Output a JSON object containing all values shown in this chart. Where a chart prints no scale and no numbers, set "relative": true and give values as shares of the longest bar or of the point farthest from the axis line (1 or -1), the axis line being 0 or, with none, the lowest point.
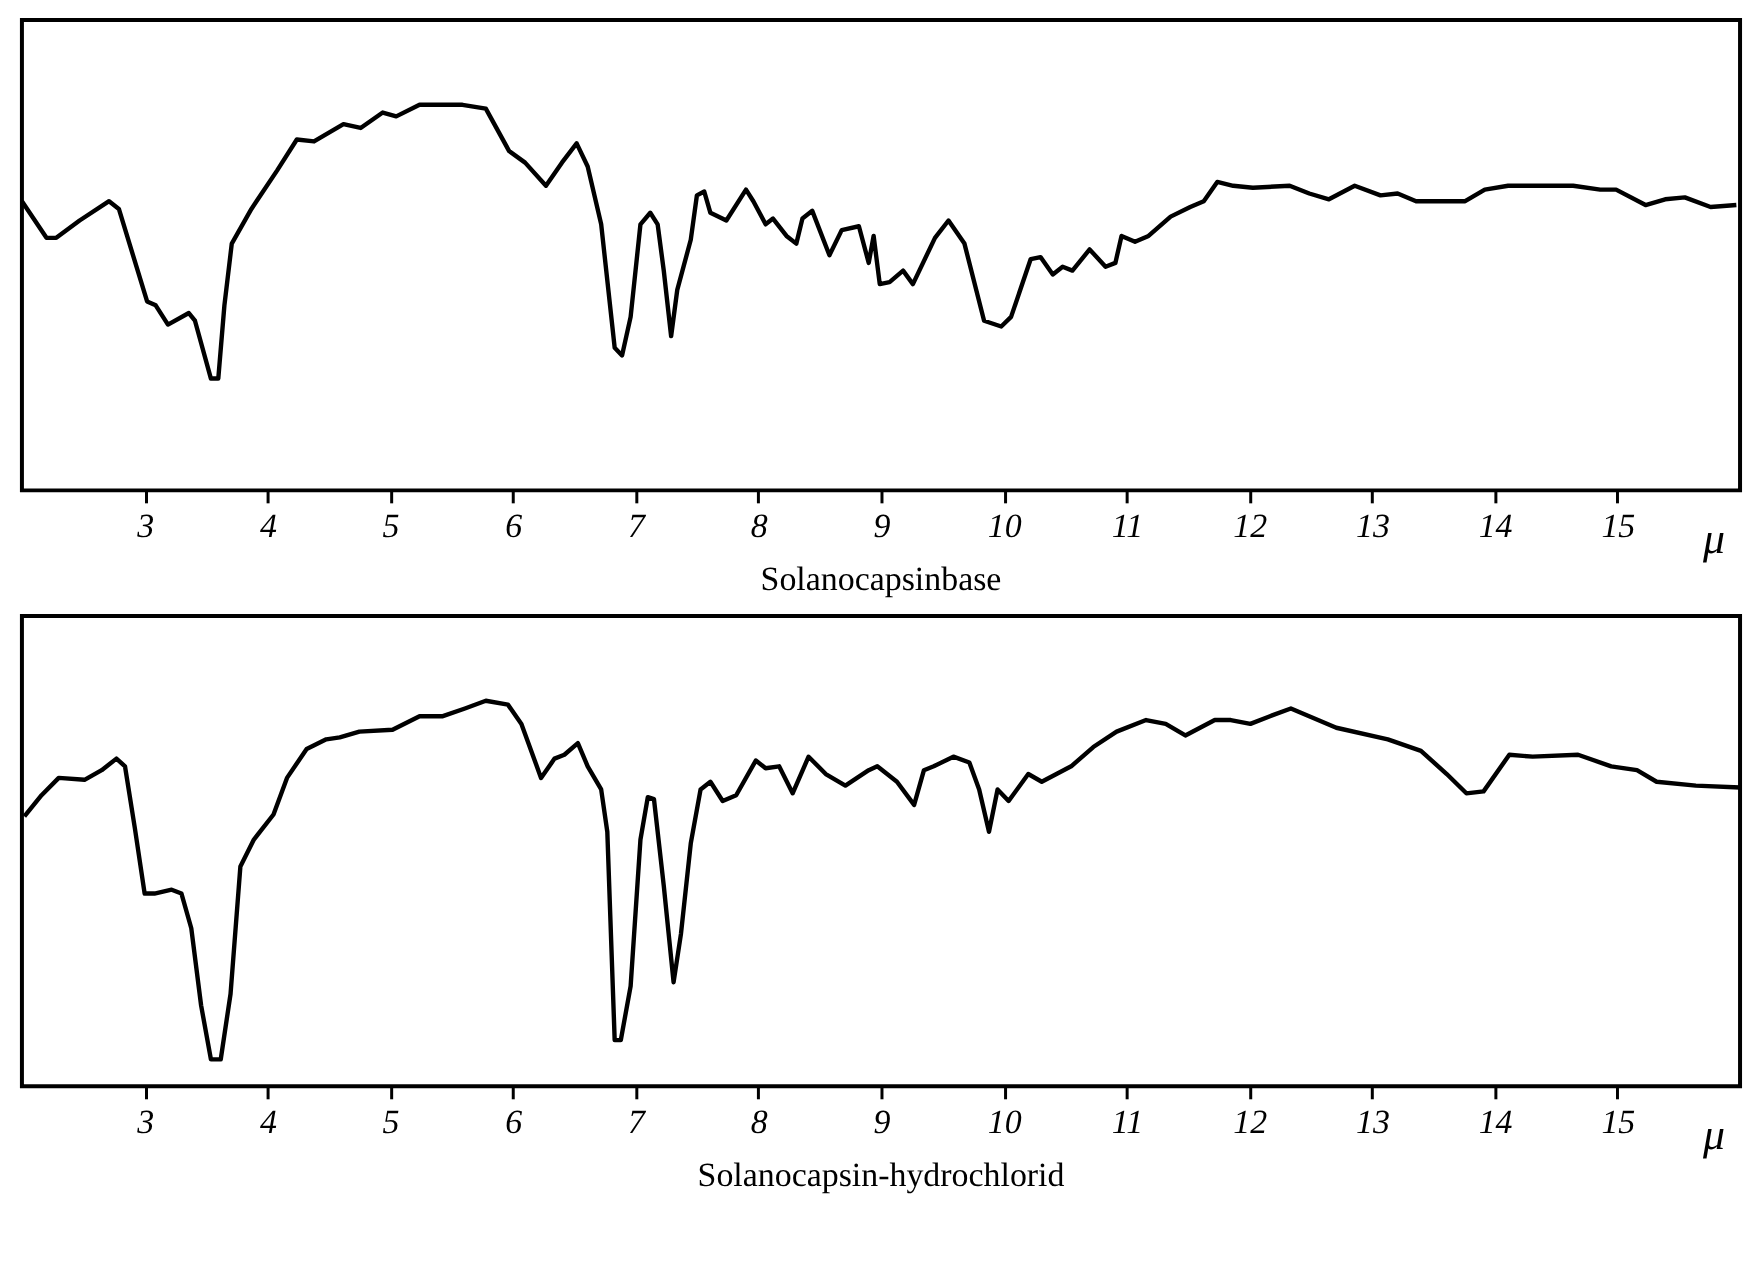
{
  "chart_data": [
    {
      "type": "line",
      "relative": true,
      "title": "Solanocapsinbase",
      "xlabel": "μ",
      "xlim": [
        2,
        16
      ],
      "xticks": [
        3,
        4,
        5,
        6,
        7,
        8,
        9,
        10,
        11,
        12,
        13,
        14,
        15
      ],
      "tick_labels": "x",
      "grid": false,
      "marker": "none",
      "line_style": "solid",
      "x": [
        2.0,
        2.2,
        2.28,
        2.47,
        2.71,
        2.79,
        3.02,
        3.09,
        3.19,
        3.36,
        3.41,
        3.54,
        3.6,
        3.65,
        3.71,
        3.87,
        4.08,
        4.24,
        4.38,
        4.62,
        4.76,
        4.94,
        5.05,
        5.24,
        5.59,
        5.78,
        5.97,
        6.1,
        6.27,
        6.4,
        6.52,
        6.61,
        6.72,
        6.83,
        6.89,
        6.96,
        7.04,
        7.12,
        7.18,
        7.23,
        7.29,
        7.34,
        7.45,
        7.5,
        7.56,
        7.61,
        7.74,
        7.9,
        7.96,
        8.06,
        8.12,
        8.23,
        8.31,
        8.36,
        8.44,
        8.58,
        8.68,
        8.82,
        8.9,
        8.94,
        8.99,
        9.07,
        9.18,
        9.26,
        9.44,
        9.55,
        9.68,
        9.84,
        9.98,
        10.06,
        10.22,
        10.3,
        10.4,
        10.48,
        10.56,
        10.7,
        10.83,
        10.91,
        10.96,
        11.07,
        11.18,
        11.36,
        11.52,
        11.63,
        11.74,
        11.87,
        12.03,
        12.33,
        12.49,
        12.65,
        12.86,
        13.07,
        13.21,
        13.36,
        13.76,
        13.92,
        14.11,
        14.38,
        14.64,
        14.86,
        14.99,
        15.23,
        15.39,
        15.55,
        15.76,
        15.97
      ],
      "series": [
        {
          "color": "#000000",
          "values": [
            0.75,
            0.655,
            0.655,
            0.7,
            0.75,
            0.73,
            0.49,
            0.48,
            0.43,
            0.46,
            0.44,
            0.29,
            0.29,
            0.48,
            0.64,
            0.73,
            0.83,
            0.91,
            0.905,
            0.95,
            0.94,
            0.98,
            0.97,
            1.0,
            1.0,
            0.99,
            0.88,
            0.85,
            0.79,
            0.85,
            0.9,
            0.84,
            0.69,
            0.37,
            0.35,
            0.45,
            0.69,
            0.72,
            0.69,
            0.57,
            0.4,
            0.52,
            0.65,
            0.765,
            0.775,
            0.72,
            0.7,
            0.78,
            0.75,
            0.69,
            0.705,
            0.66,
            0.64,
            0.705,
            0.725,
            0.61,
            0.675,
            0.685,
            0.59,
            0.66,
            0.535,
            0.54,
            0.57,
            0.535,
            0.655,
            0.7,
            0.64,
            0.44,
            0.425,
            0.45,
            0.6,
            0.605,
            0.56,
            0.58,
            0.57,
            0.625,
            0.58,
            0.59,
            0.66,
            0.645,
            0.66,
            0.71,
            0.735,
            0.75,
            0.8,
            0.79,
            0.785,
            0.79,
            0.77,
            0.755,
            0.79,
            0.765,
            0.77,
            0.75,
            0.75,
            0.78,
            0.79,
            0.79,
            0.79,
            0.78,
            0.78,
            0.74,
            0.755,
            0.76,
            0.735,
            0.74
          ]
        }
      ]
    },
    {
      "type": "line",
      "relative": true,
      "title": "Solanocapsin-hydrochlorid",
      "xlabel": "μ",
      "xlim": [
        2,
        16
      ],
      "xticks": [
        3,
        4,
        5,
        6,
        7,
        8,
        9,
        10,
        11,
        12,
        13,
        14,
        15
      ],
      "tick_labels": "x",
      "grid": false,
      "marker": "none",
      "line_style": "solid",
      "x": [
        2.02,
        2.16,
        2.3,
        2.51,
        2.65,
        2.77,
        2.84,
        2.92,
        3.0,
        3.08,
        3.22,
        3.3,
        3.38,
        3.46,
        3.54,
        3.62,
        3.7,
        3.78,
        3.89,
        4.05,
        4.16,
        4.32,
        4.48,
        4.59,
        4.75,
        5.02,
        5.24,
        5.43,
        5.61,
        5.78,
        5.96,
        6.07,
        6.23,
        6.34,
        6.42,
        6.53,
        6.61,
        6.72,
        6.77,
        6.83,
        6.88,
        6.96,
        7.04,
        7.1,
        7.15,
        7.23,
        7.31,
        7.37,
        7.45,
        7.53,
        7.61,
        7.71,
        7.82,
        7.98,
        8.06,
        8.17,
        8.28,
        8.41,
        8.55,
        8.71,
        8.9,
        8.97,
        9.13,
        9.27,
        9.35,
        9.43,
        9.59,
        9.72,
        9.8,
        9.88,
        9.95,
        10.04,
        10.2,
        10.31,
        10.55,
        10.73,
        10.92,
        11.16,
        11.32,
        11.48,
        11.72,
        11.85,
        12.01,
        12.17,
        12.34,
        12.71,
        13.13,
        13.4,
        13.61,
        13.77,
        13.91,
        14.12,
        14.31,
        14.68,
        14.95,
        15.16,
        15.32,
        15.64,
        16.0
      ],
      "series": [
        {
          "color": "#000000",
          "values": [
            0.7,
            0.755,
            0.8,
            0.795,
            0.82,
            0.85,
            0.83,
            0.67,
            0.5,
            0.5,
            0.51,
            0.5,
            0.41,
            0.21,
            0.07,
            0.07,
            0.24,
            0.57,
            0.64,
            0.705,
            0.8,
            0.875,
            0.9,
            0.905,
            0.92,
            0.925,
            0.96,
            0.96,
            0.98,
            1.0,
            0.99,
            0.94,
            0.8,
            0.85,
            0.86,
            0.89,
            0.83,
            0.77,
            0.66,
            0.12,
            0.12,
            0.26,
            0.64,
            0.75,
            0.745,
            0.52,
            0.27,
            0.395,
            0.63,
            0.77,
            0.79,
            0.74,
            0.755,
            0.845,
            0.825,
            0.83,
            0.76,
            0.855,
            0.81,
            0.78,
            0.82,
            0.83,
            0.79,
            0.73,
            0.82,
            0.83,
            0.855,
            0.84,
            0.77,
            0.66,
            0.77,
            0.74,
            0.81,
            0.79,
            0.83,
            0.88,
            0.92,
            0.95,
            0.94,
            0.91,
            0.95,
            0.95,
            0.94,
            0.96,
            0.98,
            0.93,
            0.9,
            0.87,
            0.81,
            0.76,
            0.765,
            0.86,
            0.855,
            0.86,
            0.83,
            0.82,
            0.79,
            0.78,
            0.775
          ]
        }
      ]
    }
  ]
}
